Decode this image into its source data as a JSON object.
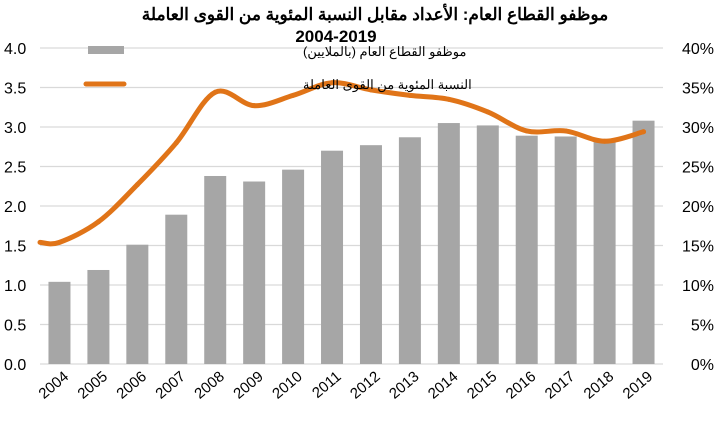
{
  "chart_data": {
    "type": "bar+line",
    "title_line1": "موظفو القطاع العام: الأعداد مقابل النسبة المئوية من القوى العاملة",
    "title_line2": "2004-2019",
    "categories": [
      "2004",
      "2005",
      "2006",
      "2007",
      "2008",
      "2009",
      "2010",
      "2011",
      "2012",
      "2013",
      "2014",
      "2015",
      "2016",
      "2017",
      "2018",
      "2019"
    ],
    "series": [
      {
        "name": "موظفو القطاع العام (بالملايين)",
        "type": "bar",
        "axis": "left",
        "color": "#a6a6a6",
        "values": [
          1.04,
          1.19,
          1.51,
          1.89,
          2.38,
          2.31,
          2.46,
          2.7,
          2.77,
          2.87,
          3.05,
          3.02,
          2.89,
          2.88,
          2.85,
          3.08
        ]
      },
      {
        "name": "النسبة المئوية من القوى العاملة",
        "type": "line",
        "axis": "right",
        "color": "#e07418",
        "values": [
          15.4,
          18.0,
          22.7,
          28.0,
          34.4,
          32.7,
          34.0,
          35.6,
          34.7,
          34.0,
          33.5,
          31.9,
          29.5,
          29.5,
          28.2,
          29.4
        ]
      }
    ],
    "y_left": {
      "ylim": [
        0,
        4
      ],
      "ticks": [
        "0.0",
        "0.5",
        "1.0",
        "1.5",
        "2.0",
        "2.5",
        "3.0",
        "3.5",
        "4.0"
      ]
    },
    "y_right": {
      "ylim": [
        0,
        40
      ],
      "ticks": [
        "0%",
        "5%",
        "10%",
        "15%",
        "20%",
        "25%",
        "30%",
        "35%",
        "40%"
      ]
    },
    "grid": true,
    "legend": "top-left"
  }
}
